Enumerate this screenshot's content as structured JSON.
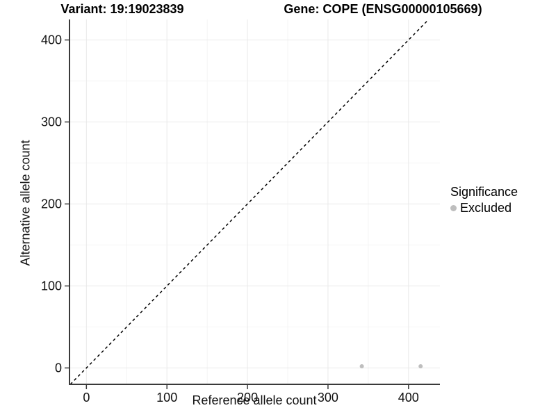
{
  "titles": {
    "variant": "Variant: 19:19023839",
    "gene": "Gene: COPE (ENSG00000105669)"
  },
  "chart_data": {
    "type": "scatter",
    "title_left": "Variant: 19:19023839",
    "title_right": "Gene: COPE (ENSG00000105669)",
    "xlabel": "Reference allele count",
    "ylabel": "Alternative allele count",
    "xlim": [
      -21,
      439
    ],
    "ylim": [
      -20,
      425
    ],
    "x_ticks": [
      0,
      100,
      200,
      300,
      400
    ],
    "y_ticks": [
      0,
      100,
      200,
      300,
      400
    ],
    "x_minor_ticks": [
      50,
      150,
      250,
      350
    ],
    "y_minor_ticks": [
      50,
      150,
      250,
      350
    ],
    "grid": "major+minor",
    "reference_line": {
      "type": "identity",
      "style": "dashed",
      "color": "#000000"
    },
    "series": [
      {
        "name": "Excluded",
        "color": "#bebebe",
        "points": [
          {
            "x": 342,
            "y": 2
          },
          {
            "x": 415,
            "y": 2
          }
        ]
      }
    ],
    "legend": {
      "title": "Significance",
      "position": "right",
      "entries": [
        {
          "label": "Excluded",
          "color": "#bebebe"
        }
      ]
    },
    "style": {
      "point_color": "#bebebe",
      "axis_line_color": "#3a3a3a",
      "tick_label_color": "#111111",
      "major_grid_color": "#e9e9e9",
      "minor_grid_color": "#f4f4f4",
      "background": "#ffffff"
    }
  }
}
